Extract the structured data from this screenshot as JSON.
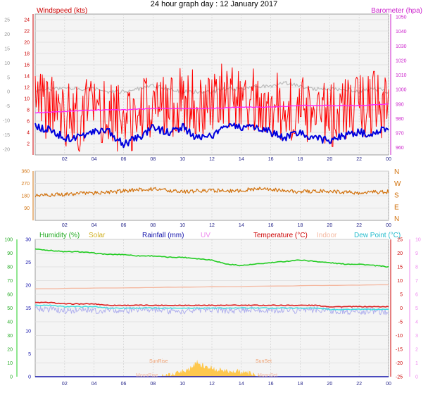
{
  "title": "24 hour graph day : 12 January 2017",
  "colors": {
    "windspeed": "#ff0000",
    "gust_avg": "#0000dd",
    "barometer": "#ff22ff",
    "temp_grey": "#bbbbbb",
    "wind_dir": "#d2730f",
    "humidity": "#22cc22",
    "temperature": "#dd2222",
    "dew_point": "#33dddd",
    "indoor": "#f4b8a0",
    "lavender": "#b0b0ee",
    "solar": "#ffc030",
    "rainfall": "#1010aa",
    "uv": "#ee88ee",
    "plot_bg": "#f4f4f4"
  },
  "chart_data": [
    {
      "type": "line",
      "panel": "wind_baro",
      "labels": {
        "windspeed": "Windspeed (kts)",
        "barometer": "Barometer (hpa)"
      },
      "x_ticks": [
        "02",
        "04",
        "06",
        "08",
        "10",
        "12",
        "14",
        "16",
        "18",
        "20",
        "22",
        "00"
      ],
      "y_left_wind_ticks": [
        "2",
        "4",
        "6",
        "8",
        "10",
        "12",
        "14",
        "16",
        "18",
        "20",
        "22",
        "24"
      ],
      "y_left_wind_range": [
        0,
        25
      ],
      "y_left_temp_ticks": [
        "-20",
        "-15",
        "-10",
        "-5",
        "0",
        "5",
        "10",
        "15",
        "20",
        "25"
      ],
      "y_left_temp_range": [
        -22,
        27
      ],
      "y_right_baro_ticks": [
        "960",
        "970",
        "980",
        "990",
        "1000",
        "1010",
        "1020",
        "1030",
        "1040",
        "1050"
      ],
      "y_right_baro_range": [
        955,
        1052
      ],
      "x_range_hours": [
        0,
        24
      ],
      "series": [
        {
          "key": "grey_temp",
          "scale": "temp",
          "x": [
            0,
            1,
            2,
            3,
            4,
            5,
            6,
            7,
            8,
            9,
            10,
            11,
            12,
            13,
            14,
            15,
            16,
            17,
            18,
            19,
            20,
            21,
            22,
            23,
            24
          ],
          "y": [
            0,
            1,
            1,
            1,
            1,
            0,
            0,
            1,
            2,
            1,
            0,
            0,
            0,
            1,
            1,
            2,
            2,
            3,
            2,
            1,
            1,
            1,
            0,
            1,
            0
          ]
        },
        {
          "key": "wind_avg",
          "scale": "wind",
          "x": [
            0,
            1,
            2,
            3,
            4,
            5,
            6,
            7,
            8,
            9,
            10,
            11,
            12,
            13,
            14,
            15,
            16,
            17,
            18,
            19,
            20,
            21,
            22,
            23,
            24
          ],
          "y": [
            5,
            4.5,
            3,
            3,
            4,
            4,
            2,
            3,
            5,
            4,
            5,
            3,
            3.5,
            5,
            5,
            5,
            4,
            3,
            4,
            3,
            2.5,
            3.5,
            4,
            3.5,
            5
          ]
        },
        {
          "key": "wind_gust",
          "scale": "wind",
          "x": [
            0,
            1,
            2,
            3,
            4,
            5,
            6,
            7,
            8,
            9,
            10,
            11,
            12,
            13,
            14,
            15,
            16,
            17,
            18,
            19,
            20,
            21,
            22,
            23,
            24
          ],
          "y": [
            9,
            8,
            7,
            6,
            9,
            7,
            6,
            7,
            9,
            8,
            10,
            9,
            9,
            11,
            10,
            10,
            9,
            8,
            8,
            8,
            7,
            8,
            9,
            9,
            8
          ]
        },
        {
          "key": "barometer",
          "scale": "baro",
          "x": [
            0,
            2,
            4,
            6,
            8,
            10,
            12,
            14,
            16,
            18,
            20,
            22,
            24
          ],
          "y": [
            984,
            985,
            986,
            986,
            987,
            987,
            987,
            988,
            988,
            989,
            989,
            989,
            990
          ]
        }
      ]
    },
    {
      "type": "line",
      "panel": "wind_direction",
      "y_ticks": [
        "90",
        "180",
        "270",
        "360"
      ],
      "y_range": [
        0,
        360
      ],
      "compass": [
        "N",
        "W",
        "S",
        "E",
        "N"
      ],
      "x_ticks": [
        "02",
        "04",
        "06",
        "08",
        "10",
        "12",
        "14",
        "16",
        "18",
        "20",
        "22",
        "00"
      ],
      "x_range_hours": [
        0,
        24
      ],
      "series": [
        {
          "key": "direction",
          "x": [
            0,
            1,
            2,
            3,
            4,
            5,
            6,
            7,
            8,
            9,
            10,
            11,
            12,
            13,
            14,
            15,
            16,
            17,
            18,
            19,
            20,
            21,
            22,
            23,
            24
          ],
          "y": [
            180,
            185,
            190,
            195,
            200,
            205,
            215,
            225,
            230,
            220,
            210,
            215,
            220,
            215,
            220,
            230,
            225,
            215,
            210,
            215,
            210,
            205,
            200,
            205,
            210
          ]
        }
      ]
    },
    {
      "type": "line",
      "panel": "temp_humidity",
      "labels": {
        "humidity": "Humidity (%)",
        "solar": "Solar",
        "rainfall": "Rainfall (mm)",
        "uv": "UV",
        "temperature": "Temperature (°C)",
        "indoor": "Indoor",
        "dew_point": "Dew Point (°C)",
        "sunrise": "SunRise",
        "sunset": "SunSet",
        "moonrise": "MoonRise",
        "moonset": "MoonSet"
      },
      "x_ticks": [
        "02",
        "04",
        "06",
        "08",
        "10",
        "12",
        "14",
        "16",
        "18",
        "20",
        "22",
        "00"
      ],
      "x_range_hours": [
        0,
        24
      ],
      "y_hum_ticks": [
        "0",
        "10",
        "20",
        "30",
        "40",
        "50",
        "60",
        "70",
        "80",
        "90",
        "100"
      ],
      "y_hum_range": [
        0,
        100
      ],
      "y_rain_ticks": [
        "0",
        "5",
        "10",
        "15",
        "20",
        "25",
        "30"
      ],
      "y_rain_range": [
        0,
        30
      ],
      "y_temp_ticks": [
        "-25",
        "-20",
        "-15",
        "-10",
        "-5",
        "0",
        "5",
        "10",
        "15",
        "20",
        "25"
      ],
      "y_temp_range": [
        -25,
        25
      ],
      "y_uv_ticks": [
        "0",
        "1",
        "2",
        "3",
        "4",
        "5",
        "6",
        "7",
        "8",
        "9",
        "10"
      ],
      "y_uv_range": [
        0,
        10
      ],
      "series": [
        {
          "key": "humidity",
          "scale": "hum",
          "x": [
            0,
            1,
            2,
            3,
            4,
            5,
            6,
            7,
            8,
            9,
            10,
            11,
            12,
            13,
            14,
            15,
            16,
            17,
            18,
            19,
            20,
            21,
            22,
            23,
            24
          ],
          "y": [
            93,
            92,
            91,
            91,
            90,
            89,
            89,
            88,
            88,
            87,
            87,
            86,
            85,
            82,
            81,
            82,
            83,
            84,
            85,
            84,
            83,
            82,
            82,
            81,
            80
          ]
        },
        {
          "key": "indoor",
          "scale": "temp",
          "x": [
            0,
            24
          ],
          "y": [
            7,
            8.5
          ]
        },
        {
          "key": "temperature",
          "scale": "temp",
          "x": [
            0,
            1,
            2,
            3,
            4,
            5,
            6,
            7,
            8,
            9,
            10,
            11,
            12,
            13,
            14,
            15,
            16,
            17,
            18,
            19,
            20,
            21,
            22,
            23,
            24
          ],
          "y": [
            2,
            2,
            1.5,
            1.5,
            1.5,
            1,
            1,
            1,
            1,
            1,
            1,
            1,
            1,
            1,
            1,
            1,
            1,
            1,
            1,
            1,
            0.5,
            0.5,
            0.5,
            0.5,
            0.5
          ]
        },
        {
          "key": "dew_point",
          "scale": "temp",
          "x": [
            0,
            1,
            2,
            3,
            4,
            5,
            6,
            7,
            8,
            9,
            10,
            11,
            12,
            13,
            14,
            15,
            16,
            17,
            18,
            19,
            20,
            21,
            22,
            23,
            24
          ],
          "y": [
            1,
            1,
            0.5,
            0.5,
            0.5,
            0,
            0,
            0,
            0,
            0,
            0,
            0,
            0,
            0,
            0,
            0,
            0,
            0,
            0,
            0,
            -0.5,
            -0.5,
            -0.5,
            -0.5,
            -0.5
          ]
        },
        {
          "key": "lavender",
          "scale": "temp",
          "x": [
            0,
            1,
            2,
            3,
            4,
            5,
            6,
            7,
            8,
            9,
            10,
            11,
            12,
            13,
            14,
            15,
            16,
            17,
            18,
            19,
            20,
            21,
            22,
            23,
            24
          ],
          "y": [
            0,
            -0.5,
            -1,
            -0.5,
            -1,
            -0.5,
            -1,
            -0.5,
            -0.5,
            -1,
            -1,
            -0.5,
            -0.5,
            -1,
            -0.5,
            -0.5,
            -1,
            -0.5,
            -1,
            -0.5,
            -1,
            -1,
            -1.5,
            -1,
            -1.5
          ]
        },
        {
          "key": "solar",
          "scale": "rain",
          "x": [
            8.2,
            8.8,
            9.4,
            9.9,
            10.4,
            10.7,
            11,
            11.3,
            11.6,
            12,
            12.4,
            12.8,
            13.2,
            13.6,
            14,
            14.4,
            14.8,
            15.1,
            15.4
          ],
          "y": [
            0,
            0.2,
            0.5,
            1,
            1.5,
            2.3,
            3.4,
            2.5,
            2.3,
            2,
            1.4,
            1.6,
            1.2,
            1.3,
            0.9,
            0.9,
            0.5,
            0.4,
            0
          ]
        },
        {
          "key": "rainfall",
          "scale": "rain",
          "x": [
            0,
            24
          ],
          "y": [
            0,
            0
          ]
        }
      ]
    }
  ]
}
